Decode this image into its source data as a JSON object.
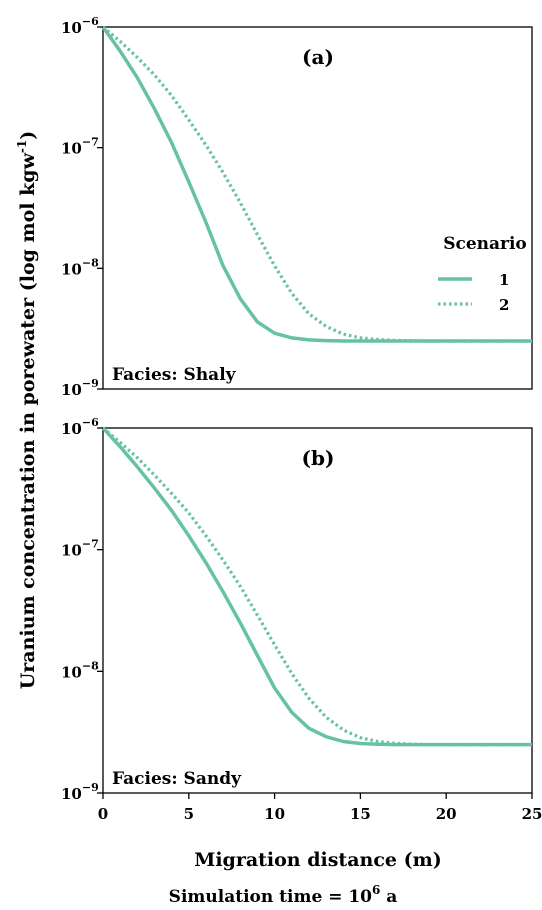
{
  "chart_data": [
    {
      "type": "line",
      "panel_label": "(a)",
      "facies_label": "Facies: Shaly",
      "y_scale": "log",
      "ylim": [
        1e-09,
        1e-06
      ],
      "xlim": [
        0,
        25
      ],
      "x_ticks_shown": false,
      "series": [
        {
          "name": "1",
          "style": "solid",
          "x": [
            0,
            1,
            2,
            3,
            4,
            5,
            6,
            7,
            8,
            9,
            10,
            11,
            12,
            13,
            14,
            15,
            16,
            17,
            18,
            19,
            20,
            21,
            22,
            23,
            24,
            25
          ],
          "values": [
            1e-06,
            6.3e-07,
            3.8e-07,
            2.1e-07,
            1.1e-07,
            5.2e-08,
            2.4e-08,
            1.05e-08,
            5.6e-09,
            3.6e-09,
            2.9e-09,
            2.65e-09,
            2.55e-09,
            2.52e-09,
            2.5e-09,
            2.5e-09,
            2.5e-09,
            2.5e-09,
            2.5e-09,
            2.5e-09,
            2.5e-09,
            2.5e-09,
            2.5e-09,
            2.5e-09,
            2.5e-09,
            2.5e-09
          ]
        },
        {
          "name": "2",
          "style": "dotted",
          "x": [
            0,
            1,
            2,
            3,
            4,
            5,
            6,
            7,
            8,
            9,
            10,
            11,
            12,
            13,
            14,
            15,
            16,
            17,
            18,
            19,
            20,
            21,
            22,
            23,
            24,
            25
          ],
          "values": [
            1e-06,
            7.6e-07,
            5.6e-07,
            4e-07,
            2.7e-07,
            1.7e-07,
            1.05e-07,
            6.2e-08,
            3.5e-08,
            1.9e-08,
            1.05e-08,
            6.2e-09,
            4.2e-09,
            3.3e-09,
            2.85e-09,
            2.65e-09,
            2.57e-09,
            2.53e-09,
            2.51e-09,
            2.5e-09,
            2.5e-09,
            2.5e-09,
            2.5e-09,
            2.5e-09,
            2.5e-09,
            2.5e-09
          ]
        }
      ]
    },
    {
      "type": "line",
      "panel_label": "(b)",
      "facies_label": "Facies: Sandy",
      "y_scale": "log",
      "ylim": [
        1e-09,
        1e-06
      ],
      "xlim": [
        0,
        25
      ],
      "x_ticks": [
        0,
        5,
        10,
        15,
        20,
        25
      ],
      "series": [
        {
          "name": "1",
          "style": "solid",
          "x": [
            0,
            1,
            2,
            3,
            4,
            5,
            6,
            7,
            8,
            9,
            10,
            11,
            12,
            13,
            14,
            15,
            16,
            17,
            18,
            19,
            20,
            21,
            22,
            23,
            24,
            25
          ],
          "values": [
            1e-06,
            7e-07,
            4.8e-07,
            3.2e-07,
            2.1e-07,
            1.3e-07,
            7.8e-08,
            4.5e-08,
            2.5e-08,
            1.35e-08,
            7.3e-09,
            4.6e-09,
            3.4e-09,
            2.9e-09,
            2.65e-09,
            2.55e-09,
            2.52e-09,
            2.5e-09,
            2.5e-09,
            2.5e-09,
            2.5e-09,
            2.5e-09,
            2.5e-09,
            2.5e-09,
            2.5e-09,
            2.5e-09
          ]
        },
        {
          "name": "2",
          "style": "dotted",
          "x": [
            0,
            1,
            2,
            3,
            4,
            5,
            6,
            7,
            8,
            9,
            10,
            11,
            12,
            13,
            14,
            15,
            16,
            17,
            18,
            19,
            20,
            21,
            22,
            23,
            24,
            25
          ],
          "values": [
            1e-06,
            7.6e-07,
            5.7e-07,
            4.1e-07,
            2.9e-07,
            2e-07,
            1.3e-07,
            8.2e-08,
            5e-08,
            2.9e-08,
            1.65e-08,
            9.6e-09,
            6e-09,
            4.2e-09,
            3.3e-09,
            2.85e-09,
            2.65e-09,
            2.56e-09,
            2.52e-09,
            2.5e-09,
            2.5e-09,
            2.5e-09,
            2.5e-09,
            2.5e-09,
            2.5e-09,
            2.5e-09
          ]
        }
      ]
    }
  ],
  "y_tick_labels": [
    {
      "base": "10",
      "exp": "−6"
    },
    {
      "base": "10",
      "exp": "−7"
    },
    {
      "base": "10",
      "exp": "−8"
    },
    {
      "base": "10",
      "exp": "−9"
    }
  ],
  "y_axis_title": {
    "text": "Uranium concentration in porewater (log mol kgw",
    "sup": "-1",
    "tail": ")"
  },
  "x_axis_title": "Migration distance (m)",
  "legend": {
    "title": "Scenario",
    "position": "right-middle of panel (a)",
    "entries": [
      "1",
      "2"
    ]
  },
  "caption": {
    "text": "Simulation time = 10",
    "sup": "6",
    "tail": " a"
  },
  "colors": {
    "line": "#66c2a5",
    "axis": "#000000",
    "background": "#ffffff"
  }
}
